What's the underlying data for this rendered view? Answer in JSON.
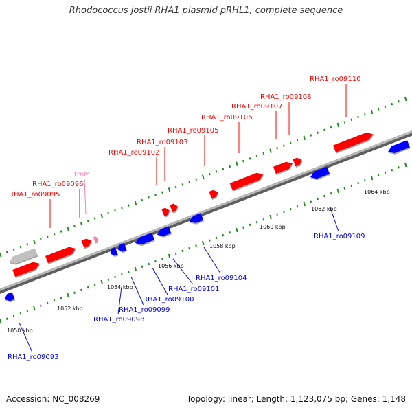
{
  "title": "Rhodococcus jostii RHA1 plasmid pRHL1, complete sequence",
  "footer": {
    "accession": "Accession: NC_008269",
    "summary": "Topology: linear; Length: 1,123,075 bp; Genes: 1,148"
  },
  "colors": {
    "forward_gene": "#ff0000",
    "reverse_gene": "#0000ff",
    "trna": "#ff7fb2",
    "pseudo": "#c0c0c0",
    "backbone": "#808080",
    "ticks": "#228b22"
  },
  "kbp_labels": [
    "1050 kbp",
    "1052 kbp",
    "1054 kbp",
    "1056 kbp",
    "1058 kbp",
    "1060 kbp",
    "1062 kbp",
    "1064 kbp"
  ],
  "top_labels": [
    "RHA1_ro09095",
    "RHA1_ro09096",
    "trnM",
    "RHA1_ro09102",
    "RHA1_ro09103",
    "RHA1_ro09105",
    "RHA1_ro09106",
    "RHA1_ro09107",
    "RHA1_ro09108",
    "RHA1_ro09110"
  ],
  "bottom_labels": [
    "RHA1_ro09093",
    "RHA1_ro09098",
    "RHA1_ro09099",
    "RHA1_ro09100",
    "RHA1_ro09101",
    "RHA1_ro09104",
    "RHA1_ro09109"
  ]
}
